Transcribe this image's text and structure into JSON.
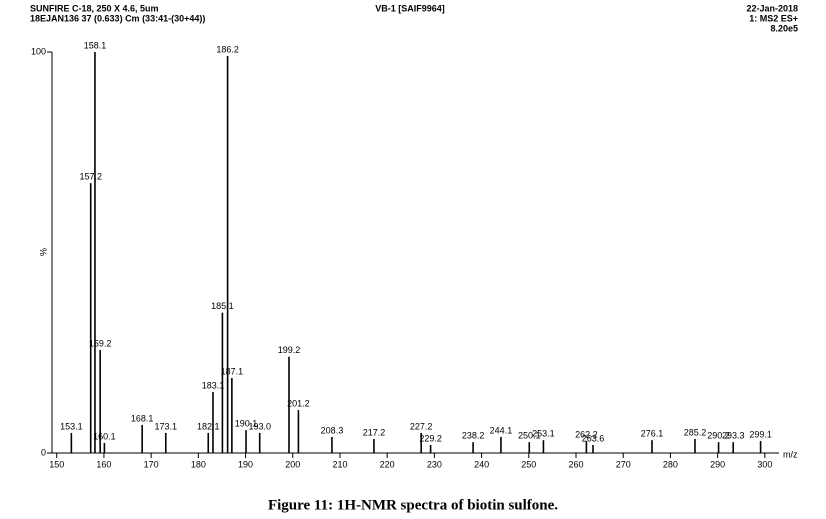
{
  "chart_data": {
    "type": "stick",
    "title": "VB-1 [SAIF9964]",
    "header_left": [
      "SUNFIRE C-18, 250 X 4.6, 5um",
      "18EJAN136 37 (0.633) Cm (33:41-(30+44))"
    ],
    "header_right": [
      "22-Jan-2018",
      "1: MS2 ES+",
      "8.20e5"
    ],
    "xlabel": "m/z",
    "ylabel": "%",
    "x": [
      153.1,
      157.2,
      158.1,
      159.2,
      160.1,
      168.1,
      173.1,
      182.1,
      183.1,
      185.1,
      186.2,
      187.1,
      190.1,
      193.0,
      199.2,
      201.2,
      208.3,
      217.2,
      227.2,
      229.2,
      238.2,
      244.1,
      250.1,
      253.1,
      262.2,
      263.6,
      276.1,
      285.2,
      290.2,
      293.3,
      299.1
    ],
    "x_labels": [
      "153.1",
      "157.2",
      "158.1",
      "159.2",
      "160.1",
      "168.1",
      "173.1",
      "182.1",
      "183.1",
      "185.1",
      "186.2",
      "187.1",
      "190.1",
      "193.0",
      "199.2",
      "201.2",
      "208.3",
      "217.2",
      "227.2",
      "229.2",
      "238.2",
      "244.1",
      "250.1",
      "253.1",
      "262.2",
      "263.6",
      "276.1",
      "285.2",
      "290.2",
      "293.3",
      "299.1"
    ],
    "values": [
      5,
      67.3,
      100,
      25.7,
      2.5,
      7,
      5,
      5,
      15.2,
      35,
      99,
      18.7,
      5.7,
      5,
      24,
      10.7,
      4,
      3.5,
      5,
      2,
      2.7,
      4,
      2.7,
      3.2,
      3,
      2,
      3.2,
      3.5,
      2.7,
      2.7,
      3
    ],
    "color": "#000000",
    "xlim": [
      149,
      303
    ],
    "xticks": [
      150,
      160,
      170,
      180,
      190,
      200,
      210,
      220,
      230,
      240,
      250,
      260,
      270,
      280,
      290,
      300
    ],
    "ylim": [
      0,
      100
    ],
    "yticks": [
      0,
      100
    ]
  },
  "caption": "Figure 11: 1H-NMR spectra of biotin sulfone."
}
